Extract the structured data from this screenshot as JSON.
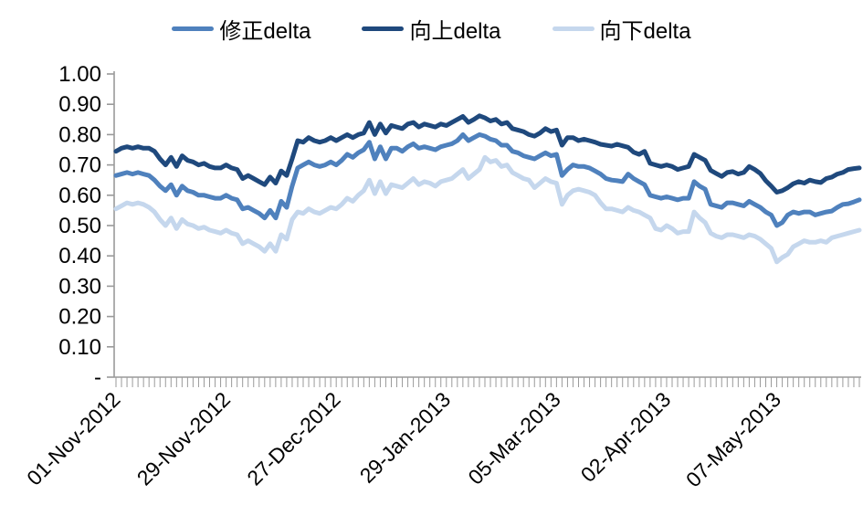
{
  "chart_data": {
    "type": "line",
    "title": "",
    "xlabel": "",
    "ylabel": "",
    "grid": false,
    "legend_position": "top",
    "axis_color": "#9a9a9a",
    "text_color": "#000000",
    "ylim": [
      0,
      1.0
    ],
    "y_tick_labels": [
      "1.00",
      "0.90",
      "0.80",
      "0.70",
      "0.60",
      "0.50",
      "0.40",
      "0.30",
      "0.20",
      "0.10",
      "-"
    ],
    "x_tick_labels": [
      "01-Nov-2012",
      "29-Nov-2012",
      "27-Dec-2012",
      "29-Jan-2013",
      "05-Mar-2013",
      "02-Apr-2013",
      "07-May-2013"
    ],
    "x_tick_indices": [
      0,
      20,
      40,
      60,
      80,
      100,
      120
    ],
    "n_points": 136,
    "series": [
      {
        "name": "修正delta",
        "color": "#4F81BD",
        "values": [
          0.665,
          0.67,
          0.675,
          0.67,
          0.675,
          0.67,
          0.665,
          0.65,
          0.63,
          0.615,
          0.635,
          0.6,
          0.63,
          0.615,
          0.61,
          0.6,
          0.6,
          0.595,
          0.59,
          0.59,
          0.6,
          0.59,
          0.585,
          0.555,
          0.56,
          0.55,
          0.54,
          0.525,
          0.55,
          0.525,
          0.58,
          0.56,
          0.63,
          0.69,
          0.7,
          0.71,
          0.7,
          0.695,
          0.7,
          0.71,
          0.7,
          0.715,
          0.735,
          0.725,
          0.74,
          0.75,
          0.775,
          0.72,
          0.76,
          0.72,
          0.755,
          0.755,
          0.745,
          0.76,
          0.77,
          0.755,
          0.76,
          0.755,
          0.75,
          0.76,
          0.765,
          0.77,
          0.78,
          0.8,
          0.78,
          0.79,
          0.8,
          0.795,
          0.785,
          0.78,
          0.765,
          0.765,
          0.745,
          0.74,
          0.73,
          0.725,
          0.72,
          0.73,
          0.74,
          0.73,
          0.735,
          0.665,
          0.685,
          0.7,
          0.695,
          0.695,
          0.69,
          0.68,
          0.67,
          0.655,
          0.65,
          0.648,
          0.645,
          0.67,
          0.655,
          0.645,
          0.635,
          0.6,
          0.595,
          0.59,
          0.595,
          0.59,
          0.585,
          0.59,
          0.59,
          0.645,
          0.63,
          0.62,
          0.57,
          0.565,
          0.56,
          0.575,
          0.575,
          0.57,
          0.565,
          0.58,
          0.57,
          0.56,
          0.545,
          0.535,
          0.5,
          0.51,
          0.535,
          0.545,
          0.54,
          0.545,
          0.545,
          0.535,
          0.54,
          0.545,
          0.548,
          0.56,
          0.57,
          0.572,
          0.578,
          0.585
        ]
      },
      {
        "name": "向上delta",
        "color": "#1F497D",
        "values": [
          0.745,
          0.755,
          0.76,
          0.755,
          0.76,
          0.755,
          0.755,
          0.745,
          0.72,
          0.7,
          0.725,
          0.695,
          0.73,
          0.715,
          0.71,
          0.7,
          0.705,
          0.695,
          0.69,
          0.69,
          0.7,
          0.69,
          0.685,
          0.655,
          0.665,
          0.655,
          0.645,
          0.635,
          0.66,
          0.64,
          0.68,
          0.665,
          0.72,
          0.78,
          0.775,
          0.79,
          0.78,
          0.775,
          0.78,
          0.79,
          0.78,
          0.79,
          0.8,
          0.79,
          0.8,
          0.805,
          0.84,
          0.8,
          0.835,
          0.805,
          0.83,
          0.825,
          0.82,
          0.835,
          0.84,
          0.825,
          0.835,
          0.83,
          0.825,
          0.835,
          0.83,
          0.84,
          0.85,
          0.86,
          0.84,
          0.85,
          0.862,
          0.855,
          0.845,
          0.85,
          0.835,
          0.84,
          0.82,
          0.815,
          0.81,
          0.8,
          0.795,
          0.805,
          0.82,
          0.81,
          0.815,
          0.765,
          0.79,
          0.79,
          0.78,
          0.785,
          0.78,
          0.775,
          0.768,
          0.765,
          0.762,
          0.768,
          0.763,
          0.758,
          0.742,
          0.735,
          0.745,
          0.705,
          0.7,
          0.695,
          0.7,
          0.695,
          0.685,
          0.69,
          0.695,
          0.735,
          0.725,
          0.715,
          0.682,
          0.672,
          0.662,
          0.675,
          0.678,
          0.67,
          0.675,
          0.695,
          0.685,
          0.672,
          0.648,
          0.63,
          0.61,
          0.615,
          0.625,
          0.638,
          0.645,
          0.64,
          0.65,
          0.645,
          0.642,
          0.655,
          0.66,
          0.67,
          0.675,
          0.685,
          0.688,
          0.69
        ]
      },
      {
        "name": "向下delta",
        "color": "#C5D7ED",
        "values": [
          0.555,
          0.565,
          0.575,
          0.57,
          0.575,
          0.57,
          0.56,
          0.545,
          0.52,
          0.5,
          0.525,
          0.49,
          0.52,
          0.505,
          0.5,
          0.49,
          0.495,
          0.485,
          0.48,
          0.475,
          0.485,
          0.475,
          0.47,
          0.44,
          0.45,
          0.44,
          0.43,
          0.415,
          0.44,
          0.415,
          0.47,
          0.455,
          0.52,
          0.545,
          0.54,
          0.555,
          0.545,
          0.54,
          0.55,
          0.56,
          0.555,
          0.57,
          0.59,
          0.58,
          0.6,
          0.615,
          0.65,
          0.605,
          0.645,
          0.605,
          0.635,
          0.63,
          0.625,
          0.64,
          0.655,
          0.635,
          0.645,
          0.64,
          0.63,
          0.645,
          0.65,
          0.655,
          0.67,
          0.685,
          0.655,
          0.67,
          0.685,
          0.725,
          0.71,
          0.715,
          0.695,
          0.7,
          0.675,
          0.665,
          0.655,
          0.65,
          0.625,
          0.64,
          0.655,
          0.645,
          0.64,
          0.57,
          0.6,
          0.615,
          0.62,
          0.615,
          0.61,
          0.6,
          0.575,
          0.555,
          0.555,
          0.55,
          0.545,
          0.56,
          0.55,
          0.545,
          0.535,
          0.525,
          0.49,
          0.485,
          0.5,
          0.49,
          0.475,
          0.48,
          0.48,
          0.545,
          0.525,
          0.51,
          0.475,
          0.465,
          0.46,
          0.47,
          0.47,
          0.465,
          0.46,
          0.47,
          0.465,
          0.455,
          0.44,
          0.425,
          0.38,
          0.395,
          0.405,
          0.43,
          0.44,
          0.45,
          0.445,
          0.445,
          0.45,
          0.445,
          0.46,
          0.465,
          0.47,
          0.475,
          0.48,
          0.485
        ]
      }
    ]
  }
}
